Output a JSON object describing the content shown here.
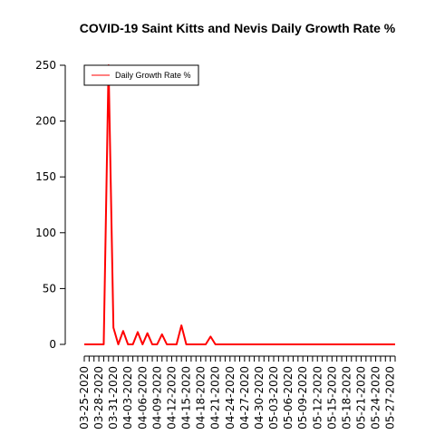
{
  "chart_data": {
    "type": "line",
    "title": "COVID-19 Saint Kitts and Nevis Daily Growth Rate %",
    "xlabel": "",
    "ylabel": "",
    "ylim": [
      0,
      250
    ],
    "y_ticks": [
      0,
      50,
      100,
      150,
      200,
      250
    ],
    "x_start": "03-25-2020",
    "x_end": "05-28-2020",
    "x_tick_labels": [
      "03-25-2020",
      "03-28-2020",
      "03-31-2020",
      "04-03-2020",
      "04-06-2020",
      "04-09-2020",
      "04-12-2020",
      "04-15-2020",
      "04-18-2020",
      "04-21-2020",
      "04-24-2020",
      "04-27-2020",
      "04-30-2020",
      "05-03-2020",
      "05-06-2020",
      "05-09-2020",
      "05-12-2020",
      "05-15-2020",
      "05-18-2020",
      "05-21-2020",
      "05-24-2020",
      "05-27-2020"
    ],
    "legend_position": "top-left",
    "series": [
      {
        "name": "Daily Growth Rate %",
        "color": "#ff0000",
        "points": [
          [
            "03-25-2020",
            0
          ],
          [
            "03-26-2020",
            0
          ],
          [
            "03-27-2020",
            0
          ],
          [
            "03-28-2020",
            0
          ],
          [
            "03-29-2020",
            0
          ],
          [
            "03-30-2020",
            250
          ],
          [
            "03-31-2020",
            15
          ],
          [
            "04-01-2020",
            0
          ],
          [
            "04-02-2020",
            12
          ],
          [
            "04-03-2020",
            0
          ],
          [
            "04-04-2020",
            0
          ],
          [
            "04-05-2020",
            11
          ],
          [
            "04-06-2020",
            0
          ],
          [
            "04-07-2020",
            10
          ],
          [
            "04-08-2020",
            0
          ],
          [
            "04-09-2020",
            0
          ],
          [
            "04-10-2020",
            9
          ],
          [
            "04-11-2020",
            0
          ],
          [
            "04-12-2020",
            0
          ],
          [
            "04-13-2020",
            0
          ],
          [
            "04-14-2020",
            17
          ],
          [
            "04-15-2020",
            0
          ],
          [
            "04-16-2020",
            0
          ],
          [
            "04-17-2020",
            0
          ],
          [
            "04-18-2020",
            0
          ],
          [
            "04-19-2020",
            0
          ],
          [
            "04-20-2020",
            7
          ],
          [
            "04-21-2020",
            0
          ],
          [
            "04-22-2020",
            0
          ],
          [
            "04-23-2020",
            0
          ],
          [
            "04-24-2020",
            0
          ],
          [
            "04-25-2020",
            0
          ],
          [
            "04-26-2020",
            0
          ],
          [
            "04-27-2020",
            0
          ],
          [
            "04-28-2020",
            0
          ],
          [
            "04-29-2020",
            0
          ],
          [
            "04-30-2020",
            0
          ],
          [
            "05-01-2020",
            0
          ],
          [
            "05-02-2020",
            0
          ],
          [
            "05-03-2020",
            0
          ],
          [
            "05-04-2020",
            0
          ],
          [
            "05-05-2020",
            0
          ],
          [
            "05-06-2020",
            0
          ],
          [
            "05-07-2020",
            0
          ],
          [
            "05-08-2020",
            0
          ],
          [
            "05-09-2020",
            0
          ],
          [
            "05-10-2020",
            0
          ],
          [
            "05-11-2020",
            0
          ],
          [
            "05-12-2020",
            0
          ],
          [
            "05-13-2020",
            0
          ],
          [
            "05-14-2020",
            0
          ],
          [
            "05-15-2020",
            0
          ],
          [
            "05-16-2020",
            0
          ],
          [
            "05-17-2020",
            0
          ],
          [
            "05-18-2020",
            0
          ],
          [
            "05-19-2020",
            0
          ],
          [
            "05-20-2020",
            0
          ],
          [
            "05-21-2020",
            0
          ],
          [
            "05-22-2020",
            0
          ],
          [
            "05-23-2020",
            0
          ],
          [
            "05-24-2020",
            0
          ],
          [
            "05-25-2020",
            0
          ],
          [
            "05-26-2020",
            0
          ],
          [
            "05-27-2020",
            0
          ],
          [
            "05-28-2020",
            0
          ]
        ]
      }
    ]
  }
}
